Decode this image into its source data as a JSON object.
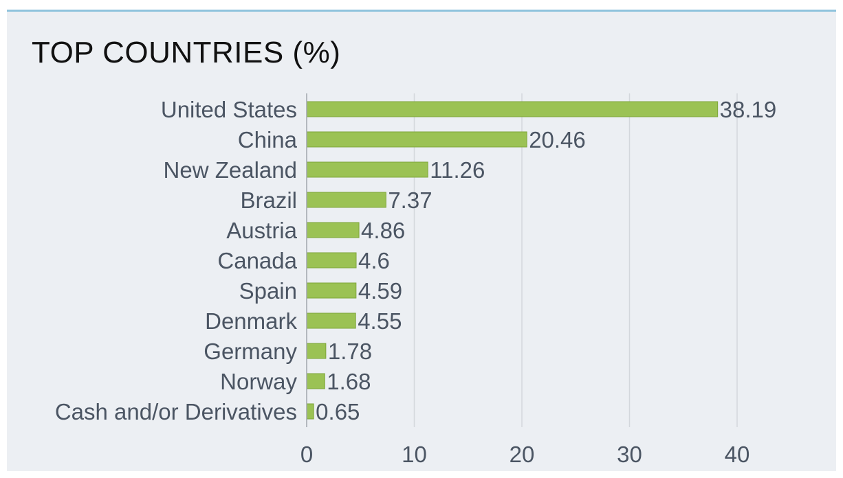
{
  "title": "TOP COUNTRIES (%)",
  "chart_data": {
    "type": "bar",
    "orientation": "horizontal",
    "title": "TOP COUNTRIES (%)",
    "categories": [
      "United States",
      "China",
      "New Zealand",
      "Brazil",
      "Austria",
      "Canada",
      "Spain",
      "Denmark",
      "Germany",
      "Norway",
      "Cash and/or Derivatives"
    ],
    "values": [
      38.19,
      20.46,
      11.26,
      7.37,
      4.86,
      4.6,
      4.59,
      4.55,
      1.78,
      1.68,
      0.65
    ],
    "value_labels": [
      "38.19",
      "20.46",
      "11.26",
      "7.37",
      "4.86",
      "4.6",
      "4.59",
      "4.55",
      "1.78",
      "1.68",
      "0.65"
    ],
    "xlim": [
      0,
      40
    ],
    "xticks": [
      "0",
      "10",
      "20",
      "30",
      "40"
    ],
    "grid": true,
    "bar_color": "#9bc254",
    "bar_edge_color": "#7ea53a"
  }
}
